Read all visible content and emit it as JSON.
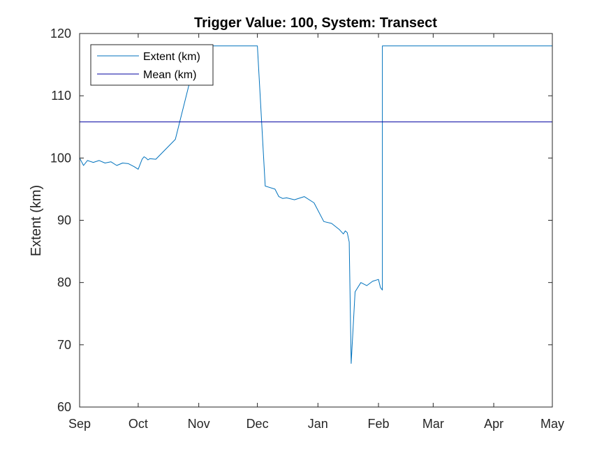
{
  "chart_data": {
    "type": "line",
    "title": "Trigger Value: 100, System: Transect",
    "xlabel": "",
    "ylabel": "Extent (km)",
    "x_ticks": [
      "Sep",
      "Oct",
      "Nov",
      "Dec",
      "Jan",
      "Feb",
      "Mar",
      "Apr",
      "May"
    ],
    "y_ticks": [
      "60",
      "70",
      "80",
      "90",
      "100",
      "110",
      "120"
    ],
    "ylim": [
      60,
      120
    ],
    "xlim": [
      "Sep 1",
      "May 1"
    ],
    "grid": false,
    "legend_position": "top-left",
    "series": [
      {
        "name": "Extent (km)",
        "color": "#0072BD",
        "x": [
          "Sep 1",
          "Sep 3",
          "Sep 5",
          "Sep 8",
          "Sep 11",
          "Sep 14",
          "Sep 17",
          "Sep 20",
          "Sep 23",
          "Sep 26",
          "Sep 29",
          "Oct 1",
          "Oct 3",
          "Oct 4",
          "Oct 5",
          "Oct 6",
          "Oct 7",
          "Oct 10",
          "Oct 20",
          "Nov 1",
          "Nov 10",
          "Nov 17",
          "Nov 18",
          "Nov 19",
          "Nov 20",
          "Nov 22",
          "Nov 25",
          "Nov 28",
          "Dec 1",
          "Dec 5",
          "Dec 10",
          "Dec 12",
          "Dec 14",
          "Dec 16",
          "Dec 20",
          "Dec 25",
          "Dec 30",
          "Jan 4",
          "Jan 8",
          "Jan 12",
          "Jan 14",
          "Jan 15",
          "Jan 16",
          "Jan 17",
          "Jan 18",
          "Jan 20",
          "Jan 23",
          "Jan 26",
          "Jan 29",
          "Feb 1",
          "Feb 2",
          "Feb 3",
          "Feb 3",
          "Feb 3",
          "Feb 15",
          "Mar 1",
          "Apr 1",
          "May 1"
        ],
        "values": [
          100,
          98.8,
          99.6,
          99.3,
          99.6,
          99.2,
          99.4,
          98.8,
          99.2,
          99.1,
          98.6,
          98.2,
          99.8,
          100.2,
          100.0,
          99.7,
          99.9,
          99.8,
          103,
          118,
          118,
          118,
          118,
          118,
          118,
          118,
          118,
          118,
          118,
          95.5,
          95.0,
          93.8,
          93.5,
          93.6,
          93.3,
          93.8,
          92.8,
          89.8,
          89.5,
          88.5,
          87.8,
          88.3,
          88.0,
          86.5,
          67,
          78.5,
          80,
          79.5,
          80.2,
          80.5,
          79.2,
          78.8,
          80.5,
          118,
          118,
          118,
          118,
          118
        ]
      },
      {
        "name": "Mean (km)",
        "color": "#0000A0",
        "x": [
          "Sep 1",
          "May 1"
        ],
        "values": [
          105.8,
          105.8
        ]
      }
    ]
  }
}
